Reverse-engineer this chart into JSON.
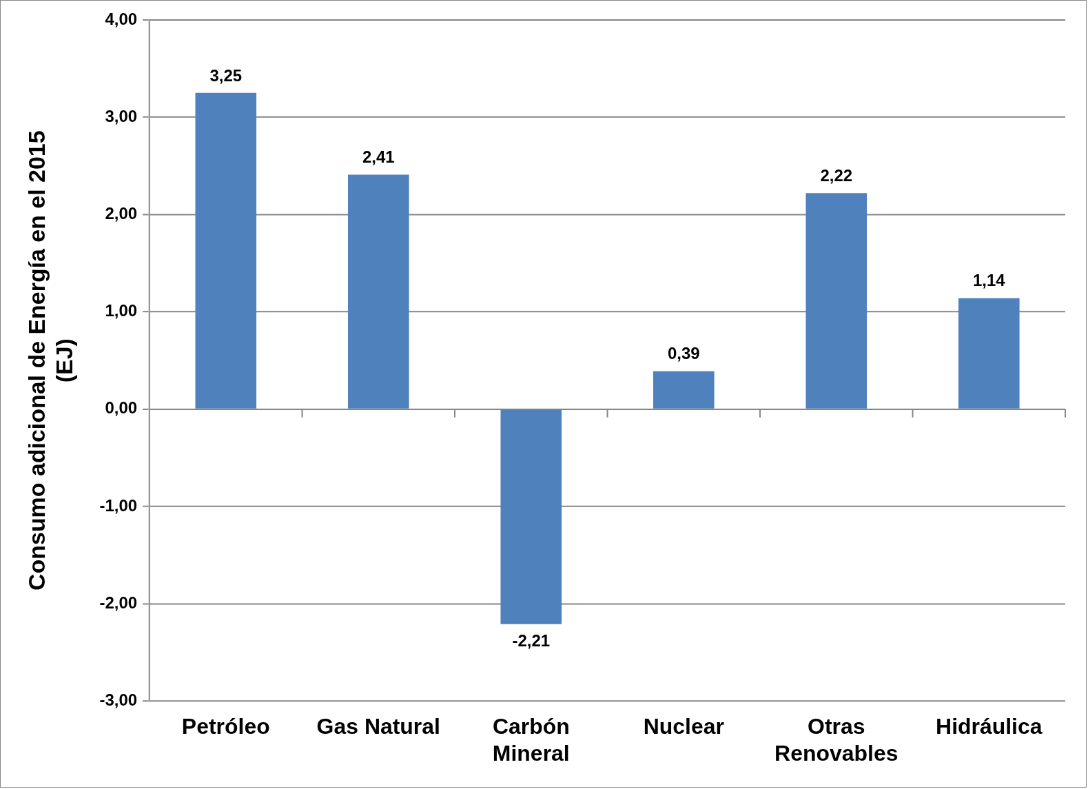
{
  "chart_data": {
    "type": "bar",
    "ylabel": "Consumo adicional de Energía en el 2015 (EJ)",
    "categories": [
      "Petróleo",
      "Gas Natural",
      "Carbón Mineral",
      "Nuclear",
      "Otras Renovables",
      "Hidráulica"
    ],
    "values": [
      3.25,
      2.41,
      -2.21,
      0.39,
      2.22,
      1.14
    ],
    "value_labels": [
      "3,25",
      "2,41",
      "-2,21",
      "0,39",
      "2,22",
      "1,14"
    ],
    "color": "#4f81bd",
    "ylim": [
      -3,
      4
    ],
    "yticks": [
      {
        "value": -3,
        "label": "-3,00"
      },
      {
        "value": -2,
        "label": "-2,00"
      },
      {
        "value": -1,
        "label": "-1,00"
      },
      {
        "value": 0,
        "label": "0,00"
      },
      {
        "value": 1,
        "label": "1,00"
      },
      {
        "value": 2,
        "label": "2,00"
      },
      {
        "value": 3,
        "label": "3,00"
      },
      {
        "value": 4,
        "label": "4,00"
      }
    ],
    "grid": "y",
    "legend": false
  }
}
